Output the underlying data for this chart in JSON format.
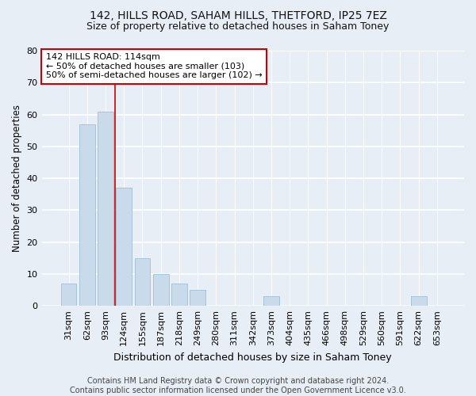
{
  "title1": "142, HILLS ROAD, SAHAM HILLS, THETFORD, IP25 7EZ",
  "title2": "Size of property relative to detached houses in Saham Toney",
  "xlabel": "Distribution of detached houses by size in Saham Toney",
  "ylabel": "Number of detached properties",
  "categories": [
    "31sqm",
    "62sqm",
    "93sqm",
    "124sqm",
    "155sqm",
    "187sqm",
    "218sqm",
    "249sqm",
    "280sqm",
    "311sqm",
    "342sqm",
    "373sqm",
    "404sqm",
    "435sqm",
    "466sqm",
    "498sqm",
    "529sqm",
    "560sqm",
    "591sqm",
    "622sqm",
    "653sqm"
  ],
  "values": [
    7,
    57,
    61,
    37,
    15,
    10,
    7,
    5,
    0,
    0,
    0,
    3,
    0,
    0,
    0,
    0,
    0,
    0,
    0,
    3,
    0
  ],
  "bar_color": "#c9daea",
  "bar_edge_color": "#a8c4d8",
  "vline_x": 2.5,
  "vline_color": "#cc0000",
  "annotation_line1": "142 HILLS ROAD: 114sqm",
  "annotation_line2": "← 50% of detached houses are smaller (103)",
  "annotation_line3": "50% of semi-detached houses are larger (102) →",
  "annotation_box_color": "#ffffff",
  "annotation_box_edge": "#cc0000",
  "ylim": [
    0,
    80
  ],
  "yticks": [
    0,
    10,
    20,
    30,
    40,
    50,
    60,
    70,
    80
  ],
  "footer": "Contains HM Land Registry data © Crown copyright and database right 2024.\nContains public sector information licensed under the Open Government Licence v3.0.",
  "bg_color": "#e8eef5",
  "plot_bg_color": "#e8eef5",
  "title1_fontsize": 10,
  "title2_fontsize": 9,
  "xlabel_fontsize": 9,
  "ylabel_fontsize": 8.5,
  "tick_fontsize": 8,
  "footer_fontsize": 7,
  "annotation_fontsize": 8
}
